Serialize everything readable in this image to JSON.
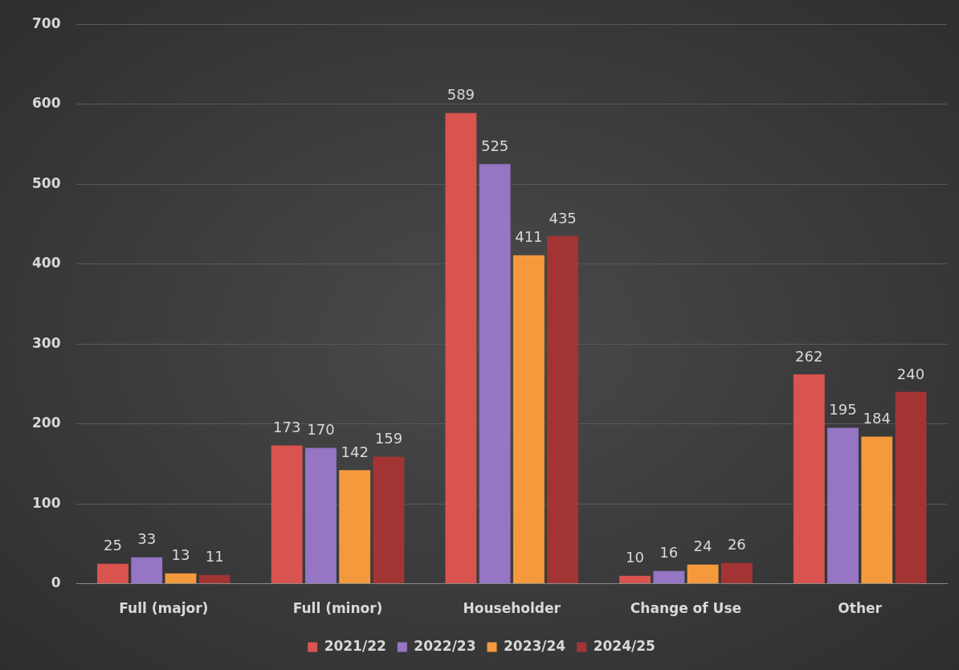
{
  "chart_data": {
    "type": "bar",
    "categories": [
      "Full (major)",
      "Full (minor)",
      "Householder",
      "Change of Use",
      "Other"
    ],
    "series": [
      {
        "name": "2021/22",
        "color": "#d9534f",
        "values": [
          25,
          173,
          589,
          10,
          262
        ]
      },
      {
        "name": "2022/23",
        "color": "#9575c4",
        "values": [
          33,
          170,
          525,
          16,
          195
        ]
      },
      {
        "name": "2023/24",
        "color": "#f59a3c",
        "values": [
          13,
          142,
          411,
          24,
          184
        ]
      },
      {
        "name": "2024/25",
        "color": "#a33434",
        "values": [
          11,
          159,
          435,
          26,
          240
        ]
      }
    ],
    "ylim": [
      0,
      700
    ],
    "yticks": [
      0,
      100,
      200,
      300,
      400,
      500,
      600,
      700
    ],
    "grid": "y",
    "legend": "bottom",
    "data_labels": true
  }
}
